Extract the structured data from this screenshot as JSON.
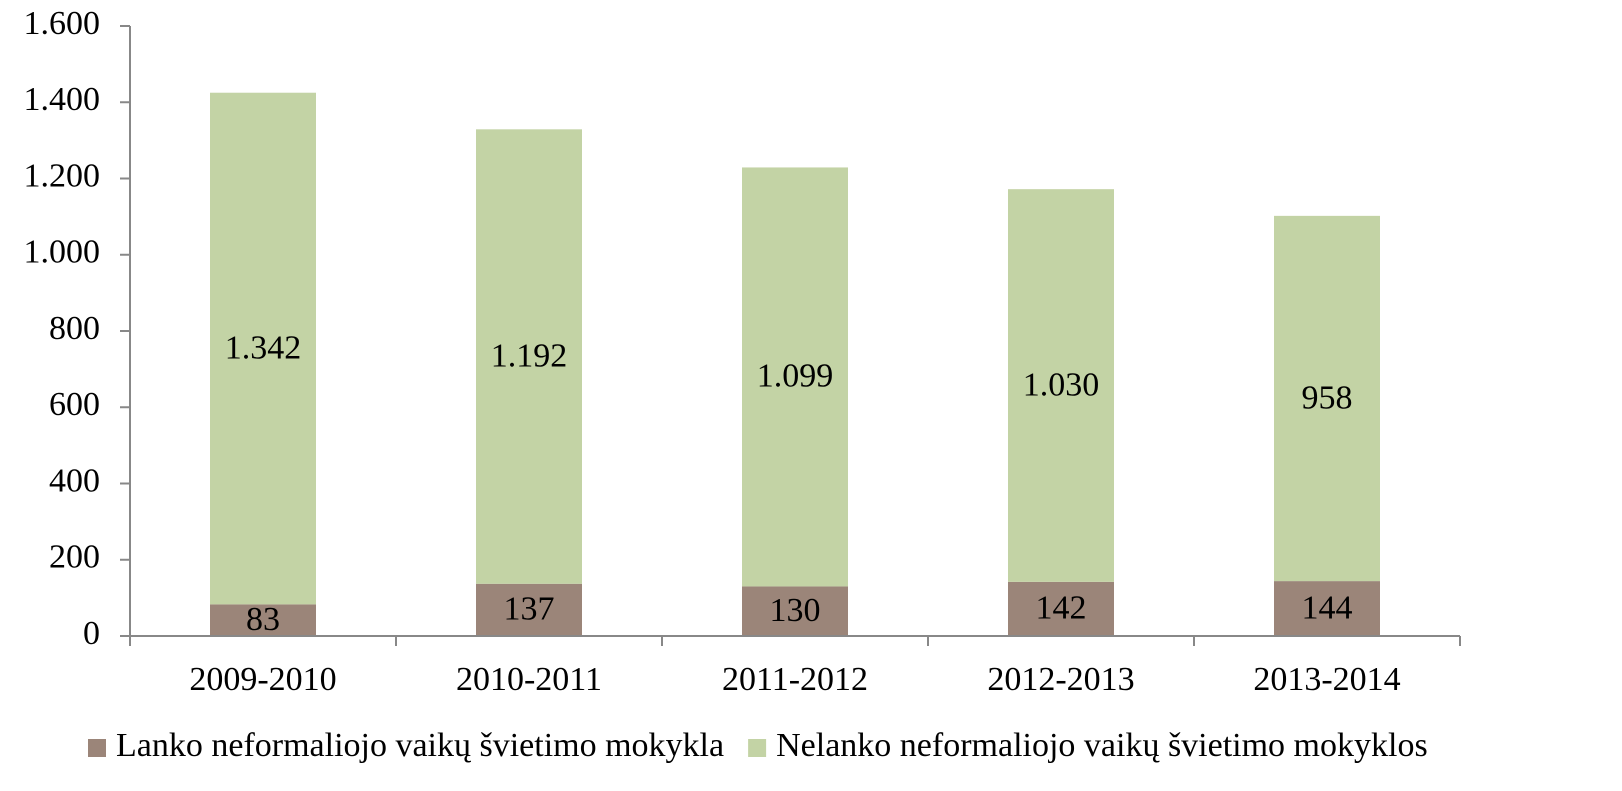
{
  "chart_data": {
    "type": "stacked_bar",
    "categories": [
      "2009-2010",
      "2010-2011",
      "2011-2012",
      "2012-2013",
      "2013-2014"
    ],
    "series": [
      {
        "name": "Lanko neformaliojo vaikų švietimo mokykla",
        "color": "#9b8579",
        "values": [
          83,
          137,
          130,
          142,
          144
        ]
      },
      {
        "name": "Nelanko neformaliojo vaikų švietimo mokyklos",
        "color": "#c3d3a5",
        "values": [
          1342,
          1192,
          1099,
          1030,
          958
        ],
        "value_labels": [
          "1.342",
          "1.192",
          "1.099",
          "1.030",
          "958"
        ]
      }
    ],
    "ylim": [
      0,
      1600
    ],
    "yticks": [
      0,
      200,
      400,
      600,
      800,
      {
        "value": 1000,
        "label": "1.000"
      },
      {
        "value": 1200,
        "label": "1.200"
      },
      {
        "value": 1400,
        "label": "1.400"
      },
      {
        "value": 1600,
        "label": "1.600"
      }
    ],
    "legend": "bottom"
  }
}
